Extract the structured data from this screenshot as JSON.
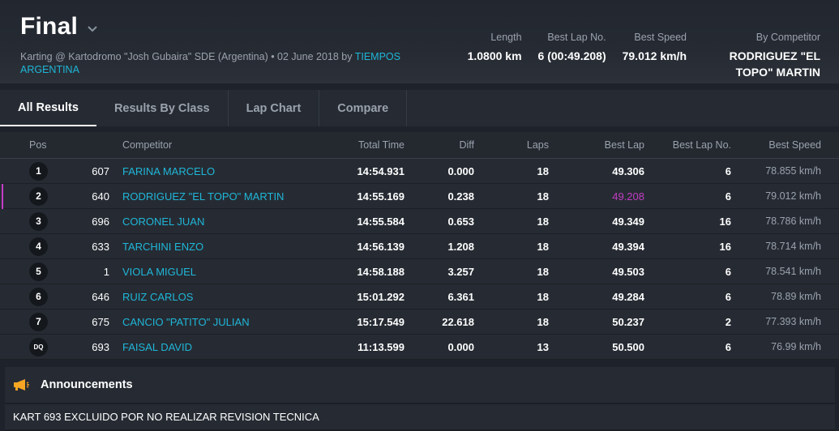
{
  "header": {
    "title": "Final",
    "subtitle_prefix": "Karting @ Kartodromo \"Josh Gubaira\" SDE (Argentina) • 02 June 2018 by ",
    "subtitle_link": "TIEMPOS ARGENTINA",
    "stats": [
      {
        "label": "Length",
        "value": "1.0800 km"
      },
      {
        "label": "Best Lap No.",
        "value": "6 (00:49.208)"
      },
      {
        "label": "Best Speed",
        "value": "79.012 km/h"
      },
      {
        "label": "By Competitor",
        "value": "RODRIGUEZ \"EL TOPO\" MARTIN"
      }
    ]
  },
  "tabs": [
    "All Results",
    "Results By Class",
    "Lap Chart",
    "Compare"
  ],
  "table": {
    "columns": {
      "pos": "Pos",
      "competitor": "Competitor",
      "total_time": "Total Time",
      "diff": "Diff",
      "laps": "Laps",
      "best_lap": "Best Lap",
      "best_lap_no": "Best Lap No.",
      "best_speed": "Best Speed"
    },
    "rows": [
      {
        "pos": "1",
        "num": "607",
        "competitor": "FARINA MARCELO",
        "total": "14:54.931",
        "diff": "0.000",
        "laps": "18",
        "best": "49.306",
        "bestno": "6",
        "speed": "78.855 km/h"
      },
      {
        "pos": "2",
        "num": "640",
        "competitor": "RODRIGUEZ \"EL TOPO\" MARTIN",
        "total": "14:55.169",
        "diff": "0.238",
        "laps": "18",
        "best": "49.208",
        "bestno": "6",
        "speed": "79.012 km/h"
      },
      {
        "pos": "3",
        "num": "696",
        "competitor": "CORONEL JUAN",
        "total": "14:55.584",
        "diff": "0.653",
        "laps": "18",
        "best": "49.349",
        "bestno": "16",
        "speed": "78.786 km/h"
      },
      {
        "pos": "4",
        "num": "633",
        "competitor": "TARCHINI ENZO",
        "total": "14:56.139",
        "diff": "1.208",
        "laps": "18",
        "best": "49.394",
        "bestno": "16",
        "speed": "78.714 km/h"
      },
      {
        "pos": "5",
        "num": "1",
        "competitor": "VIOLA MIGUEL",
        "total": "14:58.188",
        "diff": "3.257",
        "laps": "18",
        "best": "49.503",
        "bestno": "6",
        "speed": "78.541 km/h"
      },
      {
        "pos": "6",
        "num": "646",
        "competitor": "RUIZ CARLOS",
        "total": "15:01.292",
        "diff": "6.361",
        "laps": "18",
        "best": "49.284",
        "bestno": "6",
        "speed": "78.89 km/h"
      },
      {
        "pos": "7",
        "num": "675",
        "competitor": "CANCIO \"PATITO\" JULIAN",
        "total": "15:17.549",
        "diff": "22.618",
        "laps": "18",
        "best": "50.237",
        "bestno": "2",
        "speed": "77.393 km/h"
      },
      {
        "pos": "DQ",
        "num": "693",
        "competitor": "FAISAL DAVID",
        "total": "11:13.599",
        "diff": "0.000",
        "laps": "13",
        "best": "50.500",
        "bestno": "6",
        "speed": "76.99 km/h"
      }
    ]
  },
  "announcements": {
    "title": "Announcements",
    "text": "KART 693 EXCLUIDO POR NO REALIZAR REVISION TECNICA"
  },
  "colors": {
    "accent": "#1fb6d8",
    "best_lap_highlight": "#c23cc4",
    "background": "#1e232b"
  },
  "icons": {
    "title_dropdown": "chevron-down-icon",
    "announcements": "megaphone-icon"
  }
}
